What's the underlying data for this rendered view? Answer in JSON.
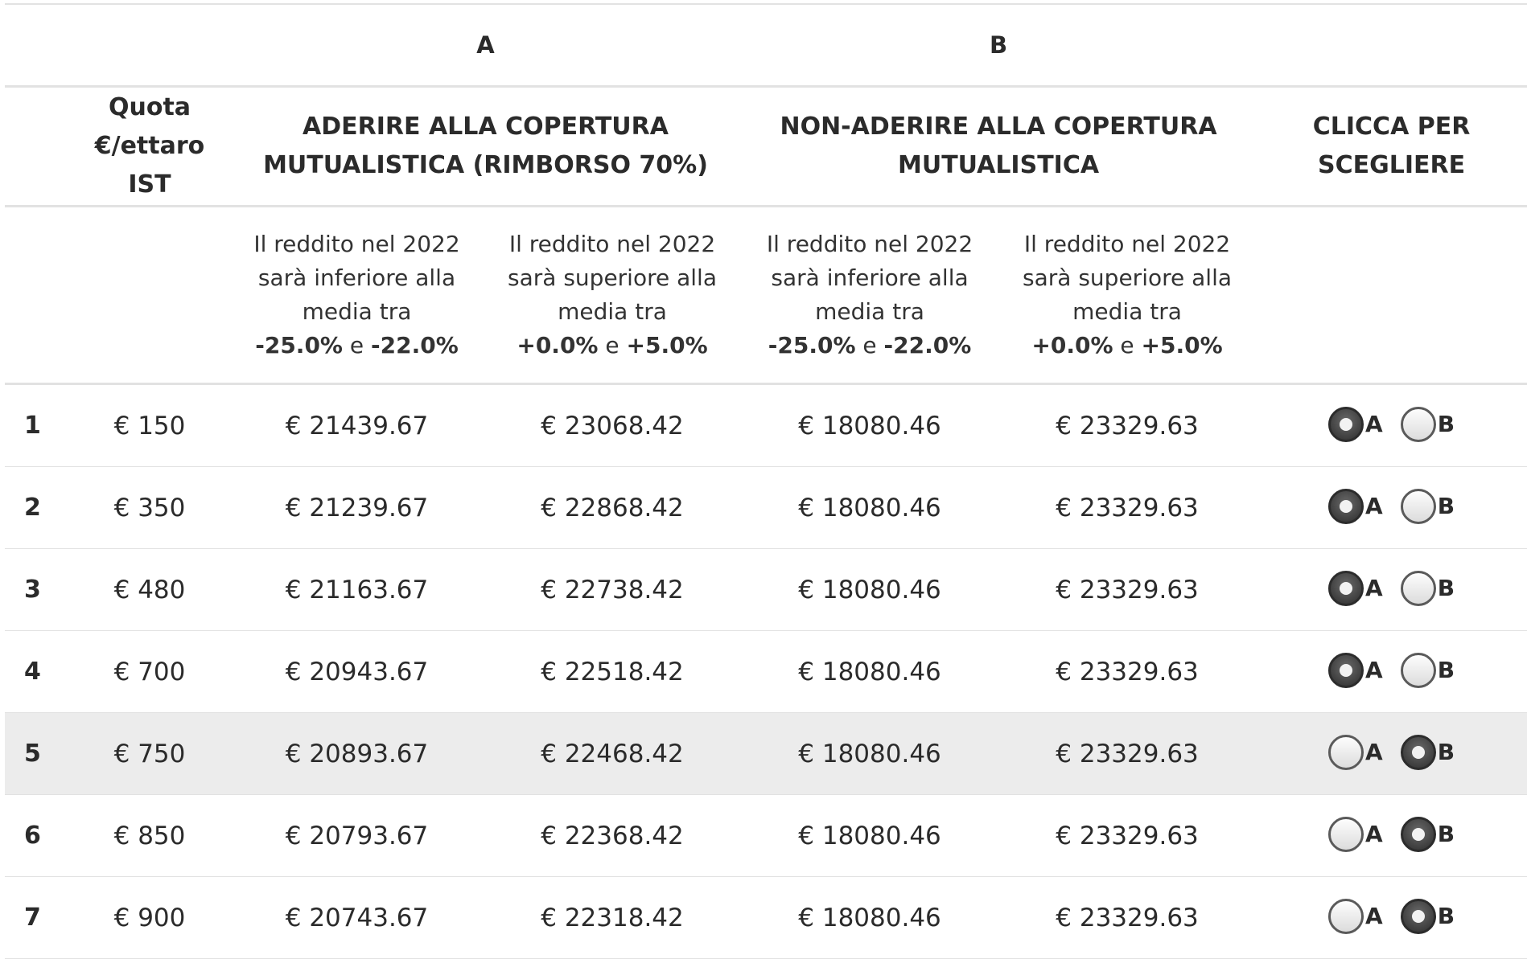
{
  "groups": {
    "a_label": "A",
    "b_label": "B"
  },
  "headers": {
    "quota": "Quota €/ettaro\nIST",
    "aderire": "ADERIRE ALLA COPERTURA\nMUTUALISTICA (RIMBORSO 70%)",
    "non_aderire": "NON-ADERIRE ALLA COPERTURA\nMUTUALISTICA",
    "clicca": "CLICCA PER\nSCEGLIERE"
  },
  "subheaders": [
    {
      "line1": "Il reddito nel 2022",
      "line2": "sarà inferiore alla",
      "line3": "media tra",
      "lo": "-25.0%",
      "conj": " e ",
      "hi": "-22.0%"
    },
    {
      "line1": "Il reddito nel 2022",
      "line2": "sarà superiore alla",
      "line3": "media tra",
      "lo": "+0.0%",
      "conj": " e ",
      "hi": "+5.0%"
    },
    {
      "line1": "Il reddito nel 2022",
      "line2": "sarà inferiore alla",
      "line3": "media tra",
      "lo": "-25.0%",
      "conj": " e ",
      "hi": "-22.0%"
    },
    {
      "line1": "Il reddito nel 2022",
      "line2": "sarà superiore alla",
      "line3": "media tra",
      "lo": "+0.0%",
      "conj": " e ",
      "hi": "+5.0%"
    }
  ],
  "option_labels": {
    "a": "A",
    "b": "B"
  },
  "rows": [
    {
      "num": "1",
      "quota": "€ 150",
      "a_low": "€ 21439.67",
      "a_high": "€ 23068.42",
      "b_low": "€ 18080.46",
      "b_high": "€ 23329.63",
      "selected": "A"
    },
    {
      "num": "2",
      "quota": "€ 350",
      "a_low": "€ 21239.67",
      "a_high": "€ 22868.42",
      "b_low": "€ 18080.46",
      "b_high": "€ 23329.63",
      "selected": "A"
    },
    {
      "num": "3",
      "quota": "€ 480",
      "a_low": "€ 21163.67",
      "a_high": "€ 22738.42",
      "b_low": "€ 18080.46",
      "b_high": "€ 23329.63",
      "selected": "A"
    },
    {
      "num": "4",
      "quota": "€ 700",
      "a_low": "€ 20943.67",
      "a_high": "€ 22518.42",
      "b_low": "€ 18080.46",
      "b_high": "€ 23329.63",
      "selected": "A"
    },
    {
      "num": "5",
      "quota": "€ 750",
      "a_low": "€ 20893.67",
      "a_high": "€ 22468.42",
      "b_low": "€ 18080.46",
      "b_high": "€ 23329.63",
      "selected": "B"
    },
    {
      "num": "6",
      "quota": "€ 850",
      "a_low": "€ 20793.67",
      "a_high": "€ 22368.42",
      "b_low": "€ 18080.46",
      "b_high": "€ 23329.63",
      "selected": "B"
    },
    {
      "num": "7",
      "quota": "€ 900",
      "a_low": "€ 20743.67",
      "a_high": "€ 22318.42",
      "b_low": "€ 18080.46",
      "b_high": "€ 23329.63",
      "selected": "B"
    }
  ],
  "highlight_row": 4
}
